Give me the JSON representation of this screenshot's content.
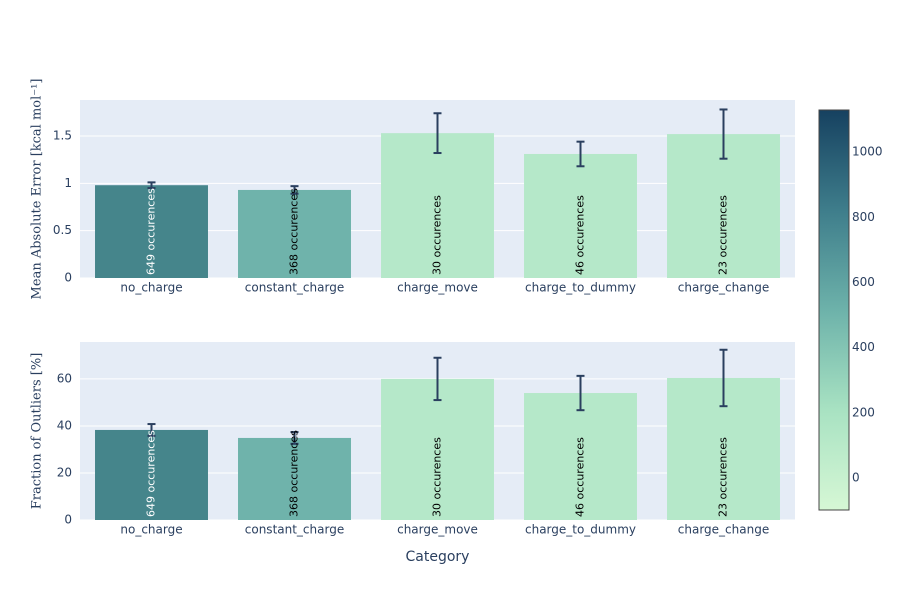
{
  "chart_data": [
    {
      "type": "bar",
      "y_label": "Mean Absolute Error [kcal mol⁻¹]",
      "categories": [
        "no_charge",
        "constant_charge",
        "charge_move",
        "charge_to_dummy",
        "charge_change"
      ],
      "values": [
        0.98,
        0.93,
        1.53,
        1.31,
        1.52
      ],
      "errors": [
        0.03,
        0.04,
        0.21,
        0.13,
        0.26
      ],
      "text": [
        "649 occurences",
        "368 occurences",
        "30 occurences",
        "46 occurences",
        "23 occurences"
      ],
      "colors": [
        "#45858b",
        "#6fb3ab",
        "#b5e8c9",
        "#b5e8c9",
        "#b5e8c9"
      ],
      "ylim": [
        0,
        1.88
      ],
      "yticks": [
        0,
        0.5,
        1,
        1.5
      ],
      "grid": true,
      "colorbar": {
        "lim": [
          -98,
          1129
        ],
        "ticks": [
          0,
          200,
          400,
          600,
          800,
          1000
        ],
        "colorscale": [
          "#d6f7d5",
          "#a8e2c2",
          "#6db2aa",
          "#3e7d8b",
          "#164160"
        ]
      }
    },
    {
      "type": "bar",
      "y_label": "Fraction of Outliers [%]",
      "x_label": "Category",
      "categories": [
        "no_charge",
        "constant_charge",
        "charge_move",
        "charge_to_dummy",
        "charge_change"
      ],
      "values": [
        38.3,
        34.9,
        60,
        54,
        60.4
      ],
      "errors": [
        2.5,
        2.5,
        9,
        7.3,
        12
      ],
      "text": [
        "649 occurences",
        "368 occurences",
        "30 occurences",
        "46 occurences",
        "23 occurences"
      ],
      "colors": [
        "#45858b",
        "#6fb3ab",
        "#b5e8c9",
        "#b5e8c9",
        "#b5e8c9"
      ],
      "ylim": [
        0,
        75.7
      ],
      "yticks": [
        0,
        20,
        40,
        60
      ],
      "grid": true
    }
  ]
}
